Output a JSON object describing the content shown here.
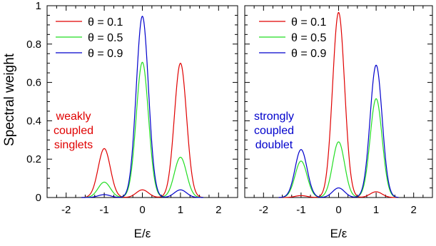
{
  "figure": {
    "ylabel": "Spectral weight"
  },
  "chart_data": [
    {
      "type": "line",
      "xlabel": "E/ε",
      "ylabel": "Spectral weight",
      "xlim": [
        -2.5,
        2.5
      ],
      "ylim": [
        0,
        1
      ],
      "x_ticks": [
        -2,
        -1,
        0,
        1,
        2
      ],
      "y_ticks": [
        0,
        0.2,
        0.4,
        0.6,
        0.8,
        1
      ],
      "grid": false,
      "legend_position": "top-left",
      "annotation": {
        "lines": [
          "weakly",
          "coupled",
          "singlets"
        ],
        "color": "#e00000"
      },
      "series": [
        {
          "name": "θ = 0.1",
          "color": "#e00000",
          "peaks": [
            {
              "x": -1,
              "height": 0.255
            },
            {
              "x": 0,
              "height": 0.04
            },
            {
              "x": 1,
              "height": 0.7
            }
          ]
        },
        {
          "name": "θ = 0.5",
          "color": "#22dd22",
          "peaks": [
            {
              "x": -1,
              "height": 0.08
            },
            {
              "x": 0,
              "height": 0.705
            },
            {
              "x": 1,
              "height": 0.21
            }
          ]
        },
        {
          "name": "θ = 0.9",
          "color": "#0000cc",
          "peaks": [
            {
              "x": -1,
              "height": 0.015
            },
            {
              "x": 0,
              "height": 0.945
            },
            {
              "x": 1,
              "height": 0.04
            }
          ]
        }
      ]
    },
    {
      "type": "line",
      "xlabel": "E/ε",
      "ylabel": "",
      "xlim": [
        -2.5,
        2.5
      ],
      "ylim": [
        0,
        1
      ],
      "x_ticks": [
        -2,
        -1,
        0,
        1,
        2
      ],
      "y_ticks": [
        0,
        0.2,
        0.4,
        0.6,
        0.8,
        1
      ],
      "grid": false,
      "legend_position": "top-left",
      "annotation": {
        "lines": [
          "strongly",
          "coupled",
          "doublet"
        ],
        "color": "#0000cc"
      },
      "series": [
        {
          "name": "θ = 0.1",
          "color": "#e00000",
          "peaks": [
            {
              "x": -1,
              "height": 0.01
            },
            {
              "x": 0,
              "height": 0.965
            },
            {
              "x": 1,
              "height": 0.03
            }
          ]
        },
        {
          "name": "θ = 0.5",
          "color": "#22dd22",
          "peaks": [
            {
              "x": -1,
              "height": 0.19
            },
            {
              "x": 0,
              "height": 0.29
            },
            {
              "x": 1,
              "height": 0.515
            }
          ]
        },
        {
          "name": "θ = 0.9",
          "color": "#0000cc",
          "peaks": [
            {
              "x": -1,
              "height": 0.25
            },
            {
              "x": 0,
              "height": 0.05
            },
            {
              "x": 1,
              "height": 0.69
            }
          ]
        }
      ]
    }
  ]
}
